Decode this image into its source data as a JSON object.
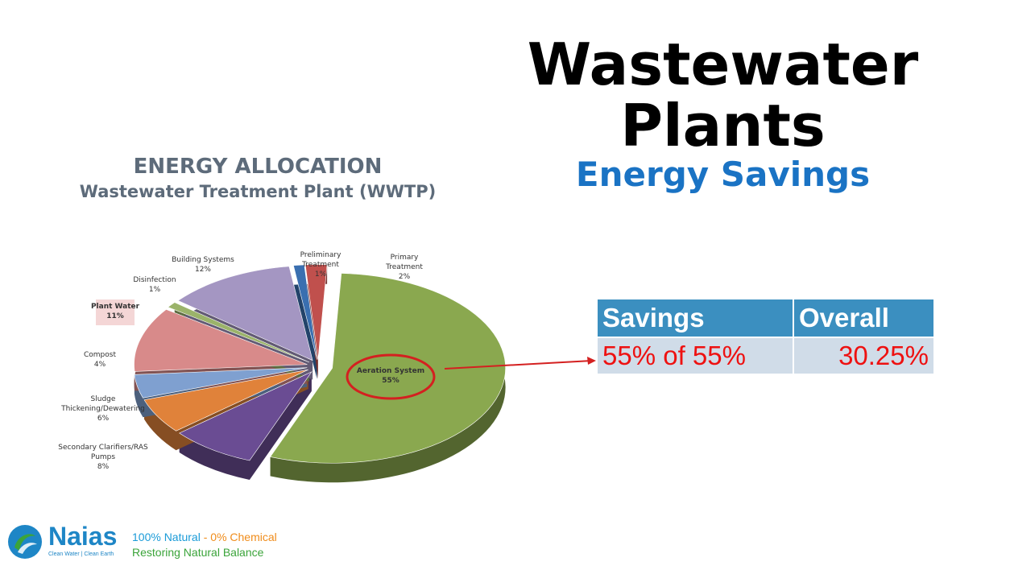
{
  "slide": {
    "title_line1": "Wastewater",
    "title_line2": "Plants",
    "subtitle": "Energy Savings"
  },
  "chart_data": {
    "type": "pie",
    "title": "ENERGY ALLOCATION",
    "subtitle": "Wastewater Treatment Plant (WWTP)",
    "slices": [
      {
        "name": "Aeration System",
        "value": 55,
        "label": "55%",
        "color": "#8aa84f"
      },
      {
        "name": "Secondary Clarifiers/RAS Pumps",
        "value": 8,
        "label": "8%",
        "color": "#6a4c93"
      },
      {
        "name": "Sludge Thickening/Dewatering",
        "value": 6,
        "label": "6%",
        "color": "#e0823a"
      },
      {
        "name": "Compost",
        "value": 4,
        "label": "4%",
        "color": "#7fa0d0"
      },
      {
        "name": "Plant Water",
        "value": 11,
        "label": "11%",
        "color": "#d88a8a"
      },
      {
        "name": "Disinfection",
        "value": 1,
        "label": "1%",
        "color": "#9bb36a"
      },
      {
        "name": "Building Systems",
        "value": 12,
        "label": "12%",
        "color": "#a496c2"
      },
      {
        "name": "Preliminary Treatment",
        "value": 1,
        "label": "1%",
        "color": "#3a6fb0"
      },
      {
        "name": "Primary Treatment",
        "value": 2,
        "label": "2%",
        "color": "#c0504d"
      }
    ],
    "highlight": "Aeration System"
  },
  "savings_table": {
    "headers": [
      "Savings",
      "Overall"
    ],
    "row": [
      "55% of 55%",
      "30.25%"
    ]
  },
  "footer": {
    "brand": "Naias",
    "tagline": "Clean Water | Clean Earth",
    "slogan_part1": "100% Natural",
    "slogan_sep": " - ",
    "slogan_part2": "0% Chemical",
    "slogan_line2": "Restoring Natural Balance"
  }
}
